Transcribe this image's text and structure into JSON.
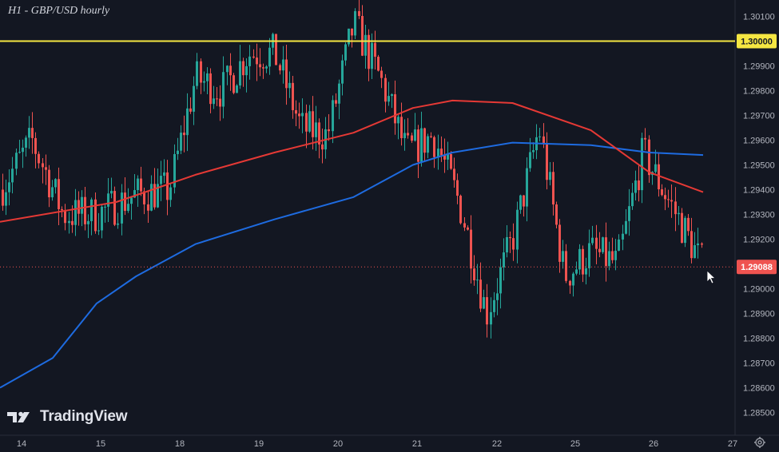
{
  "title": "H1 - GBP/USD hourly",
  "brand": "TradingView",
  "colors": {
    "background": "#131722",
    "bull": "#26a69a",
    "bear": "#ef5350",
    "ma_red": "#e53935",
    "ma_blue": "#1e6be0",
    "level_line": "#f5e642",
    "last_price_tag": "#ef5350",
    "level_tag": "#f5e642"
  },
  "chart_data": {
    "type": "candlestick",
    "symbol": "GBP/USD",
    "timeframe": "H1",
    "y_range": [
      1.2845,
      1.3013
    ],
    "x_ticks": [
      "14",
      "15",
      "18",
      "19",
      "20",
      "21",
      "22",
      "25",
      "26",
      "27"
    ],
    "y_ticks": [
      "1.30100",
      "1.29900",
      "1.29800",
      "1.29700",
      "1.29600",
      "1.29500",
      "1.29400",
      "1.29300",
      "1.29200",
      "1.29000",
      "1.28900",
      "1.28800",
      "1.28700",
      "1.28600",
      "1.28500"
    ],
    "horizontal_level": {
      "value": 1.3,
      "label": "1.30000"
    },
    "last_price": {
      "value": 1.29088,
      "label": "1.29088"
    },
    "anchors": [
      {
        "x": "14",
        "price": 1.294
      },
      {
        "x": "14",
        "price": 1.296
      },
      {
        "x": "14",
        "price": 1.293
      },
      {
        "x": "15",
        "price": 1.293
      },
      {
        "x": "15",
        "price": 1.2938
      },
      {
        "x": "18",
        "price": 1.294
      },
      {
        "x": "18",
        "price": 1.2985
      },
      {
        "x": "18",
        "price": 1.298
      },
      {
        "x": "19",
        "price": 1.2995
      },
      {
        "x": "19",
        "price": 1.2995
      },
      {
        "x": "19",
        "price": 1.2965
      },
      {
        "x": "20",
        "price": 1.2962
      },
      {
        "x": "20",
        "price": 1.3007
      },
      {
        "x": "20",
        "price": 1.2985
      },
      {
        "x": "21",
        "price": 1.2955
      },
      {
        "x": "21",
        "price": 1.2962
      },
      {
        "x": "21",
        "price": 1.2935
      },
      {
        "x": "22",
        "price": 1.289
      },
      {
        "x": "22",
        "price": 1.292
      },
      {
        "x": "22",
        "price": 1.2965
      },
      {
        "x": "25",
        "price": 1.2905
      },
      {
        "x": "25",
        "price": 1.2915
      },
      {
        "x": "25",
        "price": 1.291
      },
      {
        "x": "26",
        "price": 1.2955
      },
      {
        "x": "26",
        "price": 1.2935
      },
      {
        "x": "26",
        "price": 1.2909
      }
    ],
    "ma_red": [
      {
        "x": "14",
        "price": 1.2927
      },
      {
        "x": "15",
        "price": 1.2935
      },
      {
        "x": "18",
        "price": 1.2946
      },
      {
        "x": "19",
        "price": 1.2955
      },
      {
        "x": "20",
        "price": 1.2963
      },
      {
        "x": "21",
        "price": 1.2973
      },
      {
        "x": "21",
        "price": 1.2976
      },
      {
        "x": "22",
        "price": 1.2975
      },
      {
        "x": "25",
        "price": 1.2964
      },
      {
        "x": "26",
        "price": 1.2947
      },
      {
        "x": "26",
        "price": 1.2939
      }
    ],
    "ma_blue": [
      {
        "x": "14",
        "price": 1.286
      },
      {
        "x": "14",
        "price": 1.2872
      },
      {
        "x": "15",
        "price": 1.2894
      },
      {
        "x": "15",
        "price": 1.2905
      },
      {
        "x": "18",
        "price": 1.2918
      },
      {
        "x": "19",
        "price": 1.2928
      },
      {
        "x": "20",
        "price": 1.2937
      },
      {
        "x": "21",
        "price": 1.295
      },
      {
        "x": "21",
        "price": 1.2955
      },
      {
        "x": "22",
        "price": 1.2959
      },
      {
        "x": "25",
        "price": 1.2958
      },
      {
        "x": "26",
        "price": 1.2955
      },
      {
        "x": "26",
        "price": 1.2954
      }
    ]
  }
}
